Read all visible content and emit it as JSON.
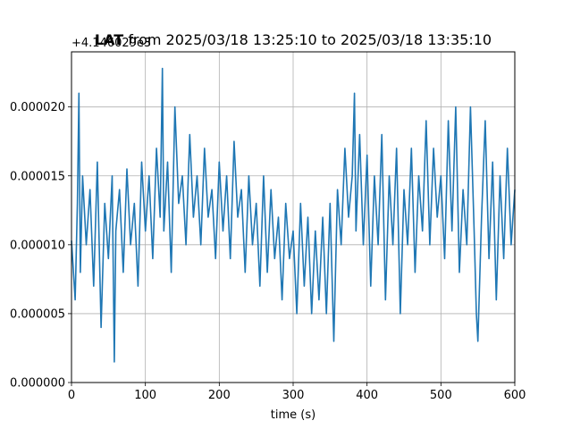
{
  "chart_data": {
    "type": "line",
    "title_bold": "LAT",
    "title_rest": " from 2025/03/18 13:25:10 to 2025/03/18 13:35:10",
    "xlabel": "time (s)",
    "ylabel": "",
    "y_offset_label": "+4.146029e3",
    "xlim": [
      0,
      600
    ],
    "ylim": [
      0.0,
      2.4e-05
    ],
    "xticks": [
      0,
      100,
      200,
      300,
      400,
      500,
      600
    ],
    "xtick_labels": [
      "0",
      "100",
      "200",
      "300",
      "400",
      "500",
      "600"
    ],
    "yticks": [
      0.0,
      5e-06,
      1e-05,
      1.5e-05,
      2e-05
    ],
    "ytick_labels": [
      "0.000000",
      "0.000005",
      "0.000010",
      "0.000015",
      "0.000020"
    ],
    "grid": true,
    "series_color": "#1f77b4",
    "series": [
      {
        "x": [
          0,
          5,
          8,
          10,
          12,
          15,
          20,
          25,
          30,
          35,
          40,
          45,
          50,
          55,
          58,
          60,
          65,
          70,
          75,
          80,
          85,
          90,
          95,
          100,
          105,
          110,
          115,
          120,
          123,
          125,
          130,
          135,
          140,
          145,
          150,
          155,
          160,
          165,
          170,
          175,
          180,
          185,
          190,
          195,
          200,
          205,
          210,
          215,
          220,
          225,
          230,
          235,
          240,
          245,
          250,
          255,
          260,
          265,
          270,
          275,
          280,
          285,
          290,
          295,
          300,
          305,
          310,
          315,
          320,
          325,
          330,
          335,
          340,
          345,
          350,
          355,
          360,
          365,
          370,
          375,
          380,
          383,
          385,
          390,
          395,
          400,
          405,
          410,
          415,
          420,
          425,
          430,
          435,
          440,
          445,
          450,
          455,
          460,
          465,
          470,
          475,
          480,
          485,
          490,
          495,
          500,
          505,
          510,
          515,
          520,
          525,
          530,
          535,
          540,
          545,
          548,
          550,
          555,
          560,
          565,
          570,
          575,
          580,
          585,
          590,
          595,
          600
        ],
        "y": [
          1.03e-05,
          6e-06,
          1.3e-05,
          2.1e-05,
          8e-06,
          1.5e-05,
          1e-05,
          1.4e-05,
          7e-06,
          1.6e-05,
          4e-06,
          1.3e-05,
          9e-06,
          1.5e-05,
          1.5e-06,
          1.1e-05,
          1.4e-05,
          8e-06,
          1.55e-05,
          1e-05,
          1.3e-05,
          7e-06,
          1.6e-05,
          1.1e-05,
          1.5e-05,
          9e-06,
          1.7e-05,
          1.2e-05,
          2.28e-05,
          1.1e-05,
          1.6e-05,
          8e-06,
          2e-05,
          1.3e-05,
          1.5e-05,
          1e-05,
          1.8e-05,
          1.2e-05,
          1.5e-05,
          1e-05,
          1.7e-05,
          1.2e-05,
          1.4e-05,
          9e-06,
          1.6e-05,
          1.1e-05,
          1.5e-05,
          9e-06,
          1.75e-05,
          1.2e-05,
          1.4e-05,
          8e-06,
          1.5e-05,
          1e-05,
          1.3e-05,
          7e-06,
          1.5e-05,
          8e-06,
          1.4e-05,
          9e-06,
          1.2e-05,
          6e-06,
          1.3e-05,
          9e-06,
          1.1e-05,
          5e-06,
          1.3e-05,
          7e-06,
          1.2e-05,
          5e-06,
          1.1e-05,
          6e-06,
          1.2e-05,
          5e-06,
          1.3e-05,
          3e-06,
          1.4e-05,
          1e-05,
          1.7e-05,
          1.2e-05,
          1.5e-05,
          2.1e-05,
          1.1e-05,
          1.8e-05,
          1e-05,
          1.65e-05,
          7e-06,
          1.5e-05,
          1e-05,
          1.8e-05,
          6e-06,
          1.5e-05,
          1e-05,
          1.7e-05,
          5e-06,
          1.4e-05,
          1e-05,
          1.7e-05,
          8e-06,
          1.5e-05,
          1.1e-05,
          1.9e-05,
          1e-05,
          1.7e-05,
          1.2e-05,
          1.5e-05,
          9e-06,
          1.9e-05,
          1.1e-05,
          2e-05,
          8e-06,
          1.4e-05,
          1e-05,
          2e-05,
          1.1e-05,
          5e-06,
          3e-06,
          1.2e-05,
          1.9e-05,
          9e-06,
          1.6e-05,
          6e-06,
          1.5e-05,
          9e-06,
          1.7e-05,
          1e-05,
          1.4e-05
        ]
      }
    ]
  }
}
